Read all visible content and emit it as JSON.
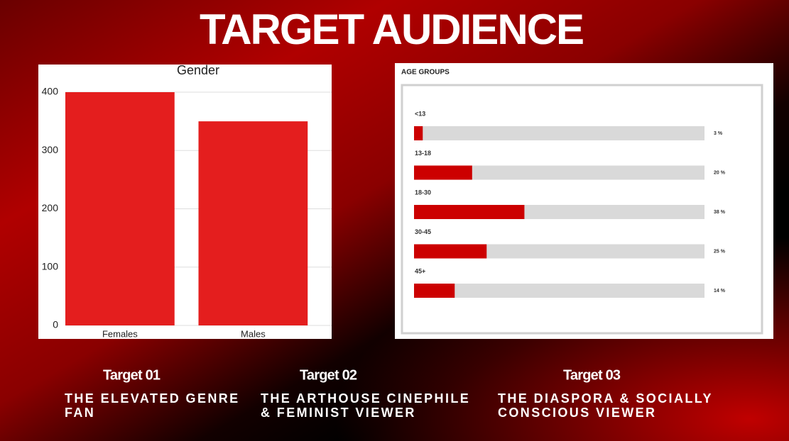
{
  "title": "TARGET AUDIENCE",
  "chart_data": [
    {
      "type": "bar",
      "title": "Gender",
      "categories": [
        "Females",
        "Males"
      ],
      "values": [
        400,
        350
      ],
      "color": "#e41e1e",
      "ylim": [
        0,
        400
      ],
      "yticks": [
        0,
        100,
        200,
        300,
        400
      ],
      "grid": true
    },
    {
      "type": "hbar",
      "title": "AGE GROUPS",
      "categories": [
        "<13",
        "13-18",
        "18-30",
        "30-45",
        "45+"
      ],
      "values": [
        3,
        20,
        38,
        25,
        14
      ],
      "value_labels": [
        "3 %",
        "20 %",
        "38 %",
        "25 %",
        "14 %"
      ],
      "color": "#cc0000",
      "track_color": "#d9d9d9",
      "xlim": [
        0,
        100
      ]
    }
  ],
  "targets": [
    {
      "label": "Target 01",
      "description": "THE ELEVATED GENRE FAN"
    },
    {
      "label": "Target 02",
      "description": "THE ARTHOUSE CINEPHILE & FEMINIST VIEWER"
    },
    {
      "label": "Target 03",
      "description": "THE DIASPORA & SOCIALLY CONSCIOUS VIEWER"
    }
  ]
}
